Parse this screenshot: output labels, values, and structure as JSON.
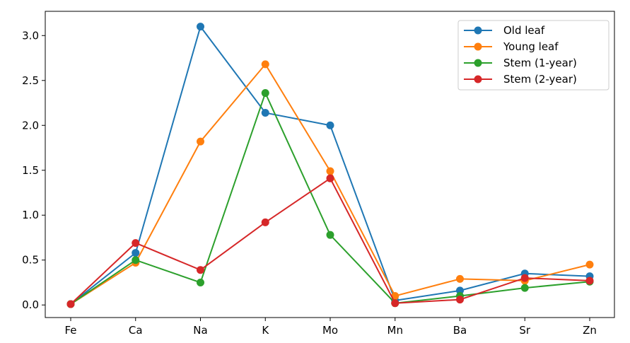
{
  "chart_data": {
    "type": "line",
    "categories": [
      "Fe",
      "Ca",
      "Na",
      "K",
      "Mo",
      "Mn",
      "Ba",
      "Sr",
      "Zn"
    ],
    "series": [
      {
        "name": "Old leaf",
        "color": "#1f77b4",
        "values": [
          0.01,
          0.58,
          3.1,
          2.14,
          2.0,
          0.05,
          0.16,
          0.35,
          0.32
        ]
      },
      {
        "name": "Young leaf",
        "color": "#ff7f0e",
        "values": [
          0.01,
          0.47,
          1.82,
          2.68,
          1.49,
          0.1,
          0.29,
          0.27,
          0.45
        ]
      },
      {
        "name": "Stem (1-year)",
        "color": "#2ca02c",
        "values": [
          0.01,
          0.5,
          0.25,
          2.36,
          0.78,
          0.02,
          0.1,
          0.19,
          0.26
        ]
      },
      {
        "name": "Stem (2-year)",
        "color": "#d62728",
        "values": [
          0.01,
          0.69,
          0.39,
          0.92,
          1.41,
          0.02,
          0.06,
          0.3,
          0.27
        ]
      }
    ],
    "yticks": [
      "0.0",
      "0.5",
      "1.0",
      "1.5",
      "2.0",
      "2.5",
      "3.0"
    ],
    "ylim": [
      -0.14,
      3.27
    ],
    "title": "",
    "xlabel": "",
    "ylabel": "",
    "grid": false,
    "legend_position": "top-right"
  }
}
